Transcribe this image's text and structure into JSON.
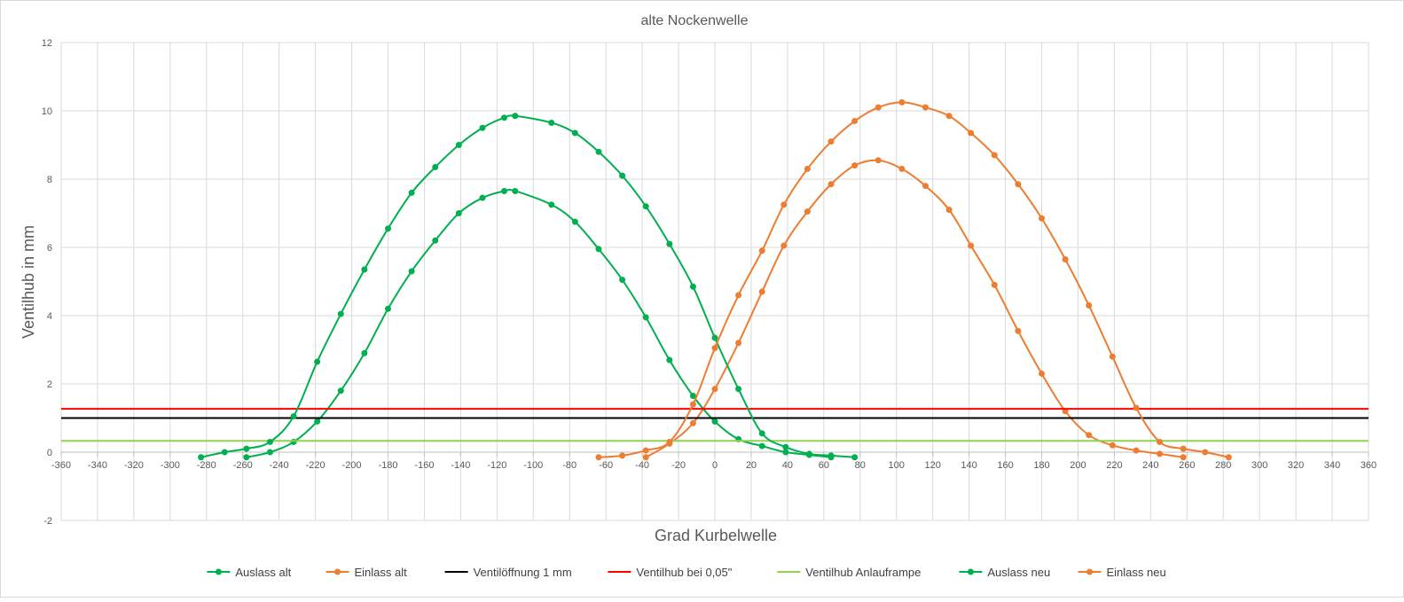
{
  "chart_data": {
    "type": "line",
    "title": "alte Nockenwelle",
    "xlabel": "Grad Kurbelwelle",
    "ylabel": "Ventilhub in mm",
    "xlim": [
      -360,
      360
    ],
    "xtick_step": 20,
    "ylim": [
      -2,
      12
    ],
    "ytick_step": 2,
    "grid": true,
    "legend_position": "bottom",
    "series": [
      {
        "name": "Auslass alt",
        "color": "#00b050",
        "marker": true,
        "points": [
          [
            -258,
            -0.15
          ],
          [
            -245,
            0
          ],
          [
            -232,
            0.3
          ],
          [
            -219,
            0.9
          ],
          [
            -206,
            1.8
          ],
          [
            -193,
            2.9
          ],
          [
            -180,
            4.2
          ],
          [
            -167,
            5.3
          ],
          [
            -154,
            6.2
          ],
          [
            -141,
            7.0
          ],
          [
            -128,
            7.45
          ],
          [
            -116,
            7.65
          ],
          [
            -110,
            7.65
          ],
          [
            -90,
            7.25
          ],
          [
            -77,
            6.75
          ],
          [
            -64,
            5.95
          ],
          [
            -51,
            5.05
          ],
          [
            -38,
            3.95
          ],
          [
            -25,
            2.7
          ],
          [
            -12,
            1.65
          ],
          [
            0,
            0.9
          ],
          [
            13,
            0.38
          ],
          [
            26,
            0.18
          ],
          [
            39,
            0
          ],
          [
            52,
            -0.08
          ],
          [
            64,
            -0.15
          ]
        ]
      },
      {
        "name": "Einlass alt",
        "color": "#ed7d31",
        "marker": true,
        "points": [
          [
            -38,
            -0.15
          ],
          [
            -25,
            0.25
          ],
          [
            -12,
            0.85
          ],
          [
            0,
            1.85
          ],
          [
            13,
            3.2
          ],
          [
            26,
            4.7
          ],
          [
            38,
            6.05
          ],
          [
            51,
            7.05
          ],
          [
            64,
            7.85
          ],
          [
            77,
            8.4
          ],
          [
            90,
            8.55
          ],
          [
            103,
            8.3
          ],
          [
            116,
            7.8
          ],
          [
            129,
            7.1
          ],
          [
            141,
            6.05
          ],
          [
            154,
            4.9
          ],
          [
            167,
            3.55
          ],
          [
            180,
            2.3
          ],
          [
            193,
            1.2
          ],
          [
            206,
            0.5
          ],
          [
            219,
            0.2
          ],
          [
            232,
            0.05
          ],
          [
            245,
            -0.05
          ],
          [
            258,
            -0.15
          ]
        ]
      },
      {
        "name": "Ventilöffnung 1 mm",
        "color": "#000000",
        "marker": false,
        "points": [
          [
            -360,
            1
          ],
          [
            360,
            1
          ]
        ]
      },
      {
        "name": "Ventilhub bei 0,05\"",
        "color": "#ff0000",
        "marker": false,
        "points": [
          [
            -360,
            1.27
          ],
          [
            360,
            1.27
          ]
        ]
      },
      {
        "name": "Ventilhub Anlauframpe",
        "color": "#92d050",
        "marker": false,
        "points": [
          [
            -360,
            0.33
          ],
          [
            360,
            0.33
          ]
        ]
      },
      {
        "name": "Auslass neu",
        "color": "#00b050",
        "marker": true,
        "points": [
          [
            -283,
            -0.15
          ],
          [
            -270,
            0
          ],
          [
            -258,
            0.1
          ],
          [
            -245,
            0.3
          ],
          [
            -232,
            1.05
          ],
          [
            -219,
            2.65
          ],
          [
            -206,
            4.05
          ],
          [
            -193,
            5.35
          ],
          [
            -180,
            6.55
          ],
          [
            -167,
            7.6
          ],
          [
            -154,
            8.35
          ],
          [
            -141,
            9.0
          ],
          [
            -128,
            9.5
          ],
          [
            -116,
            9.8
          ],
          [
            -110,
            9.85
          ],
          [
            -90,
            9.65
          ],
          [
            -77,
            9.35
          ],
          [
            -64,
            8.8
          ],
          [
            -51,
            8.1
          ],
          [
            -38,
            7.2
          ],
          [
            -25,
            6.1
          ],
          [
            -12,
            4.85
          ],
          [
            0,
            3.35
          ],
          [
            13,
            1.85
          ],
          [
            26,
            0.55
          ],
          [
            39,
            0.15
          ],
          [
            52,
            -0.05
          ],
          [
            64,
            -0.1
          ],
          [
            77,
            -0.15
          ]
        ]
      },
      {
        "name": "Einlass neu",
        "color": "#ed7d31",
        "marker": true,
        "points": [
          [
            -64,
            -0.15
          ],
          [
            -51,
            -0.1
          ],
          [
            -38,
            0.05
          ],
          [
            -25,
            0.3
          ],
          [
            -12,
            1.4
          ],
          [
            0,
            3.05
          ],
          [
            13,
            4.6
          ],
          [
            26,
            5.9
          ],
          [
            38,
            7.25
          ],
          [
            51,
            8.3
          ],
          [
            64,
            9.1
          ],
          [
            77,
            9.7
          ],
          [
            90,
            10.1
          ],
          [
            103,
            10.25
          ],
          [
            116,
            10.1
          ],
          [
            129,
            9.85
          ],
          [
            141,
            9.35
          ],
          [
            154,
            8.7
          ],
          [
            167,
            7.85
          ],
          [
            180,
            6.85
          ],
          [
            193,
            5.65
          ],
          [
            206,
            4.3
          ],
          [
            219,
            2.8
          ],
          [
            232,
            1.3
          ],
          [
            245,
            0.3
          ],
          [
            258,
            0.1
          ],
          [
            270,
            0
          ],
          [
            283,
            -0.15
          ]
        ]
      }
    ]
  }
}
